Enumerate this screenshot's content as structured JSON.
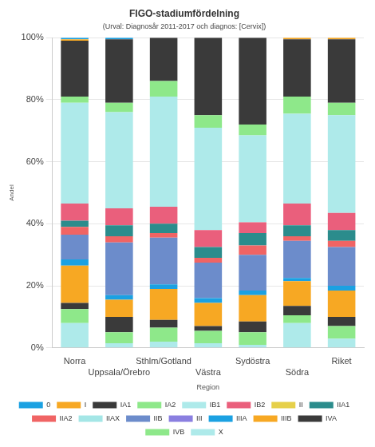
{
  "chart_data": {
    "type": "bar",
    "title": "FIGO-stadiumfördelning",
    "subtitle": "(Urval: Diagnosår 2011-2017 och diagnos: [Cervix])",
    "x_label": "Region",
    "y_label": "Andel",
    "categories": [
      "Norra",
      "Uppsala/Örebro",
      "Sthlm/Gotland",
      "Västra",
      "Sydöstra",
      "Södra",
      "Riket"
    ],
    "series": [
      {
        "name": "0",
        "color": "#1ba1e2",
        "values": [
          0.5,
          0.5,
          0,
          0,
          0,
          0,
          0
        ]
      },
      {
        "name": "I",
        "color": "#f7a823",
        "values": [
          0.5,
          0,
          0,
          0,
          0,
          0.5,
          0.5
        ]
      },
      {
        "name": "IA1",
        "color": "#3a3a3a",
        "values": [
          18,
          20.5,
          14,
          25,
          28,
          18.5,
          20.5
        ]
      },
      {
        "name": "IA2",
        "color": "#8ee88a",
        "values": [
          2,
          3,
          5,
          4,
          3.5,
          5.5,
          4
        ]
      },
      {
        "name": "IB1",
        "color": "#aeeaea",
        "values": [
          32.5,
          31,
          35.5,
          33,
          28,
          29,
          31.5
        ]
      },
      {
        "name": "IB2",
        "color": "#ea5f7c",
        "values": [
          5.5,
          5.5,
          5.5,
          5.5,
          3.5,
          7,
          5.5
        ]
      },
      {
        "name": "II",
        "color": "#e6d04a",
        "values": [
          0,
          0,
          0,
          0,
          0,
          0,
          0
        ]
      },
      {
        "name": "IIA1",
        "color": "#2b8c8c",
        "values": [
          2,
          3.5,
          3,
          3.5,
          4,
          3.5,
          3.5
        ]
      },
      {
        "name": "IIA2",
        "color": "#f06464",
        "values": [
          2.5,
          2,
          1.5,
          1.5,
          3,
          1.5,
          2
        ]
      },
      {
        "name": "IIAX",
        "color": "#a4e6e6",
        "values": [
          0,
          0,
          0,
          0,
          0,
          0,
          0
        ]
      },
      {
        "name": "IIB",
        "color": "#6c8ccb",
        "values": [
          8,
          17,
          15,
          11.5,
          11.5,
          12,
          12.5
        ]
      },
      {
        "name": "III",
        "color": "#8a7fe0",
        "values": [
          0,
          0,
          0,
          0,
          0,
          0,
          0
        ]
      },
      {
        "name": "IIIA",
        "color": "#1ba1e2",
        "values": [
          2,
          1.5,
          1.5,
          1.5,
          1.5,
          1,
          1.5
        ]
      },
      {
        "name": "IIIB",
        "color": "#f7a823",
        "values": [
          12,
          5.5,
          10,
          7.5,
          8.5,
          8,
          8.5
        ]
      },
      {
        "name": "IVA",
        "color": "#3a3a3a",
        "values": [
          2,
          5,
          2.5,
          1.5,
          3.5,
          3,
          3
        ]
      },
      {
        "name": "IVB",
        "color": "#8ee88a",
        "values": [
          4.5,
          3.5,
          4.5,
          4,
          4,
          2.5,
          4
        ]
      },
      {
        "name": "X",
        "color": "#aeeaea",
        "values": [
          8,
          1.5,
          2,
          1.5,
          1,
          8,
          3
        ]
      }
    ],
    "ylim": [
      0,
      100
    ],
    "yticks": [
      {
        "value": 0,
        "label": "0%"
      },
      {
        "value": 20,
        "label": "20%"
      },
      {
        "value": 40,
        "label": "40%"
      },
      {
        "value": 60,
        "label": "60%"
      },
      {
        "value": 80,
        "label": "80%"
      },
      {
        "value": 100,
        "label": "100%"
      }
    ],
    "stacked": true,
    "grid": true,
    "legend": "bottom"
  }
}
